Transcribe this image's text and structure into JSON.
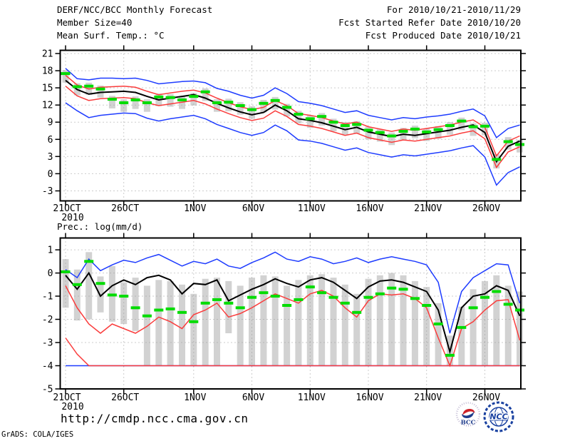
{
  "header": {
    "title": "DERF/NCC/BCC Monthly Forecast",
    "member_size": "Member Size=40",
    "for_range": "For 2010/10/21-2010/11/29",
    "refer_date": "Fcst Started Refer Date 2010/10/20",
    "produced_date": "Fcst Produced Date 2010/10/21"
  },
  "footer": {
    "url": "http://cmdp.ncc.cma.gov.cn",
    "credit": "GrADS: COLA/IGES"
  },
  "logos": {
    "bcc_label": "BCC",
    "ncc_label": "NCC"
  },
  "colors": {
    "blue": "#1e3cff",
    "red": "#fa3c3c",
    "green": "#00dc00",
    "bar_gray": "#d2d2d2",
    "grid_gray": "#9a9a9a",
    "axis_black": "#000000"
  },
  "chart_data": [
    {
      "type": "line",
      "label": "Mean Surf. Temp.: °C",
      "year_label": "2010",
      "x_tick_labels": [
        "21OCT",
        "26OCT",
        "1NOV",
        "6NOV",
        "11NOV",
        "16NOV",
        "21NOV",
        "26NOV"
      ],
      "x_tick_days": [
        0,
        5,
        11,
        16,
        21,
        26,
        31,
        36
      ],
      "n_days": 40,
      "yticks": [
        21,
        18,
        15,
        12,
        9,
        6,
        3,
        0,
        -3
      ],
      "ylim": [
        -4.75,
        21.56
      ],
      "grid": true,
      "legend": "none",
      "series": [
        {
          "name": "blue-upper-envelope",
          "color": "#1e3cff",
          "values": [
            18.4,
            16.6,
            16.4,
            16.7,
            16.7,
            16.6,
            16.7,
            16.3,
            15.7,
            15.9,
            16.1,
            16.2,
            15.9,
            14.9,
            14.4,
            13.7,
            13.2,
            13.7,
            15.0,
            14.0,
            12.6,
            12.3,
            11.9,
            11.3,
            10.7,
            11.0,
            10.2,
            9.8,
            9.4,
            9.8,
            9.6,
            9.9,
            10.1,
            10.4,
            10.9,
            11.3,
            10.1,
            6.3,
            7.9,
            8.5
          ]
        },
        {
          "name": "blue-lower-envelope",
          "color": "#1e3cff",
          "values": [
            12.4,
            11.0,
            9.8,
            10.2,
            10.4,
            10.6,
            10.5,
            9.7,
            9.2,
            9.6,
            9.9,
            10.2,
            9.6,
            8.6,
            7.9,
            7.2,
            6.7,
            7.2,
            8.5,
            7.5,
            5.9,
            5.7,
            5.3,
            4.7,
            4.1,
            4.5,
            3.7,
            3.3,
            2.9,
            3.3,
            3.1,
            3.4,
            3.7,
            4.0,
            4.5,
            4.9,
            2.9,
            -2.0,
            0.2,
            1.2
          ]
        },
        {
          "name": "red-upper-band",
          "color": "#fa3c3c",
          "values": [
            17.2,
            15.5,
            14.8,
            15.1,
            15.2,
            15.3,
            15.1,
            14.4,
            13.8,
            14.1,
            14.4,
            14.6,
            14.1,
            13.2,
            12.4,
            11.7,
            11.2,
            11.6,
            12.8,
            11.9,
            10.5,
            10.2,
            9.8,
            9.2,
            8.7,
            9.0,
            8.2,
            7.8,
            7.4,
            7.8,
            7.6,
            7.9,
            8.2,
            8.5,
            9.0,
            9.4,
            8.1,
            3.1,
            5.7,
            6.6
          ]
        },
        {
          "name": "red-lower-band",
          "color": "#fa3c3c",
          "values": [
            15.3,
            13.6,
            12.8,
            13.1,
            13.2,
            13.3,
            13.1,
            12.4,
            11.9,
            12.2,
            12.5,
            12.8,
            12.2,
            11.3,
            10.5,
            9.8,
            9.3,
            9.7,
            11.0,
            10.0,
            8.6,
            8.3,
            7.9,
            7.3,
            6.7,
            7.1,
            6.3,
            5.9,
            5.5,
            5.9,
            5.7,
            6.0,
            6.3,
            6.6,
            7.1,
            7.5,
            6.1,
            1.1,
            3.8,
            4.7
          ]
        },
        {
          "name": "black-ensemble-mean",
          "color": "#000000",
          "values": [
            16.3,
            14.7,
            13.9,
            14.2,
            14.3,
            14.4,
            14.2,
            13.5,
            12.9,
            13.2,
            13.5,
            13.8,
            13.2,
            12.3,
            11.5,
            10.8,
            10.3,
            10.7,
            12.0,
            11.0,
            9.6,
            9.3,
            8.9,
            8.3,
            7.7,
            8.1,
            7.3,
            6.9,
            6.5,
            6.9,
            6.7,
            7.0,
            7.3,
            7.6,
            8.1,
            8.5,
            7.2,
            2.1,
            4.8,
            5.7
          ]
        }
      ],
      "bars": {
        "name": "gray-spread-bar",
        "color": "#d2d2d2",
        "top": [
          18.1,
          15.8,
          15.9,
          15.4,
          13.6,
          13.0,
          13.5,
          13.0,
          14.0,
          13.9,
          13.5,
          14.1,
          14.9,
          13.0,
          13.1,
          12.5,
          11.8,
          12.9,
          13.4,
          12.2,
          11.0,
          10.2,
          10.6,
          9.6,
          9.0,
          9.2,
          8.2,
          7.8,
          7.2,
          8.0,
          8.4,
          7.9,
          8.3,
          9.0,
          9.8,
          8.8,
          8.9,
          3.4,
          6.4,
          5.9
        ],
        "bottom": [
          15.9,
          13.7,
          13.8,
          13.3,
          11.4,
          10.8,
          11.3,
          10.8,
          11.8,
          11.7,
          11.3,
          11.9,
          12.7,
          10.8,
          10.9,
          10.3,
          9.6,
          10.7,
          11.2,
          10.0,
          8.8,
          8.0,
          8.4,
          7.4,
          6.8,
          7.0,
          6.0,
          5.6,
          5.0,
          5.8,
          6.2,
          5.7,
          6.1,
          6.8,
          7.6,
          6.6,
          6.7,
          0.9,
          4.2,
          3.7
        ]
      },
      "markers": {
        "name": "green-dash-marker",
        "color": "#00dc00",
        "values": [
          17.5,
          15.2,
          15.3,
          14.8,
          13.0,
          12.4,
          12.9,
          12.4,
          13.4,
          13.3,
          12.9,
          13.5,
          14.3,
          12.4,
          12.5,
          11.9,
          11.2,
          12.3,
          12.8,
          11.6,
          10.4,
          9.6,
          10.0,
          9.0,
          8.4,
          8.6,
          7.6,
          7.2,
          6.6,
          7.4,
          7.8,
          7.3,
          7.7,
          8.4,
          9.2,
          8.2,
          8.3,
          2.5,
          5.6,
          5.1
        ]
      }
    },
    {
      "type": "line",
      "label": "Prec.: log(mm/d)",
      "year_label": "2010",
      "x_tick_labels": [
        "21OCT",
        "26OCT",
        "1NOV",
        "6NOV",
        "11NOV",
        "16NOV",
        "21NOV",
        "26NOV"
      ],
      "x_tick_days": [
        0,
        5,
        11,
        16,
        21,
        26,
        31,
        36
      ],
      "n_days": 40,
      "yticks": [
        1,
        0,
        -1,
        -2,
        -3,
        -4,
        -5
      ],
      "ylim": [
        -5,
        1.51
      ],
      "grid": true,
      "legend": "none",
      "series": [
        {
          "name": "blue-floor-line",
          "color": "#1e3cff",
          "values": [
            -4,
            -4,
            -4,
            -4,
            -4,
            -4,
            -4,
            -4,
            -4,
            -4,
            -4,
            -4,
            -4,
            -4,
            -4,
            -4,
            -4,
            -4,
            -4,
            -4,
            -4,
            -4,
            -4,
            -4,
            -4,
            -4,
            -4,
            -4,
            -4,
            -4,
            -4,
            -4,
            -4,
            -4,
            -4,
            -4,
            -4,
            -4,
            -4,
            -4
          ]
        },
        {
          "name": "red-minimum-clamped",
          "color": "#fa3c3c",
          "values": [
            -2.8,
            -3.5,
            -4,
            -4,
            -4,
            -4,
            -4,
            -4,
            -4,
            -4,
            -4,
            -4,
            -4,
            -4,
            -4,
            -4,
            -4,
            -4,
            -4,
            -4,
            -4,
            -4,
            -4,
            -4,
            -4,
            -4,
            -4,
            -4,
            -4,
            -4,
            -4,
            -4,
            -4,
            -4,
            -4,
            -4,
            -4,
            -4,
            -4,
            -4
          ]
        },
        {
          "name": "blue-upper-envelope",
          "color": "#1e3cff",
          "values": [
            0.15,
            -0.2,
            0.6,
            0.1,
            0.35,
            0.55,
            0.45,
            0.65,
            0.8,
            0.55,
            0.3,
            0.5,
            0.4,
            0.6,
            0.3,
            0.2,
            0.45,
            0.65,
            0.9,
            0.6,
            0.5,
            0.7,
            0.6,
            0.4,
            0.5,
            0.65,
            0.45,
            0.6,
            0.7,
            0.6,
            0.5,
            0.35,
            -0.4,
            -2.6,
            -0.8,
            -0.2,
            0.1,
            0.4,
            0.35,
            -1.3
          ]
        },
        {
          "name": "red-lower-band",
          "color": "#fa3c3c",
          "values": [
            -0.55,
            -1.5,
            -2.2,
            -2.6,
            -2.2,
            -2.4,
            -2.6,
            -2.3,
            -1.9,
            -2.1,
            -2.4,
            -1.8,
            -1.6,
            -1.3,
            -1.9,
            -1.75,
            -1.5,
            -1.2,
            -0.9,
            -1.1,
            -1.3,
            -0.9,
            -0.75,
            -1.0,
            -1.5,
            -1.9,
            -1.2,
            -0.9,
            -0.95,
            -0.9,
            -1.1,
            -1.5,
            -2.8,
            -4.0,
            -2.4,
            -2.1,
            -1.6,
            -1.2,
            -1.15,
            -2.9
          ]
        },
        {
          "name": "black-ensemble-mean",
          "color": "#000000",
          "values": [
            -0.1,
            -0.7,
            0.0,
            -1.0,
            -0.55,
            -0.3,
            -0.5,
            -0.2,
            -0.1,
            -0.3,
            -0.9,
            -0.45,
            -0.5,
            -0.3,
            -1.2,
            -0.95,
            -0.7,
            -0.5,
            -0.25,
            -0.45,
            -0.6,
            -0.3,
            -0.2,
            -0.4,
            -0.75,
            -1.1,
            -0.6,
            -0.35,
            -0.3,
            -0.4,
            -0.6,
            -0.8,
            -1.6,
            -3.4,
            -1.5,
            -1.0,
            -0.9,
            -0.55,
            -0.75,
            -1.85
          ]
        }
      ],
      "bars": {
        "name": "gray-spread-bar",
        "color": "#d2d2d2",
        "top": [
          0.6,
          0.15,
          0.9,
          -0.15,
          0.3,
          -0.4,
          -0.2,
          -0.55,
          -0.3,
          -0.35,
          -0.5,
          -0.9,
          -0.25,
          -0.2,
          -0.35,
          -0.55,
          -0.2,
          -0.1,
          -0.15,
          -0.55,
          -0.3,
          -0.1,
          -0.05,
          -0.2,
          -0.5,
          -0.9,
          -0.25,
          -0.1,
          0.0,
          -0.1,
          -0.35,
          -0.6,
          -1.3,
          -2.7,
          -1.45,
          -0.7,
          -0.35,
          -0.1,
          -0.55,
          -0.8
        ],
        "bottom": [
          -1.5,
          -2.05,
          -2.0,
          -1.7,
          -2.1,
          -2.2,
          -2.5,
          -4,
          -4,
          -4,
          -4,
          -4,
          -4,
          -4,
          -2.6,
          -4,
          -4,
          -4,
          -4,
          -4,
          -4,
          -4,
          -4,
          -4,
          -4,
          -4,
          -4,
          -4,
          -4,
          -4,
          -4,
          -4,
          -4,
          -4,
          -4,
          -4,
          -4,
          -4,
          -4,
          -4
        ]
      },
      "markers": {
        "name": "green-dash-marker",
        "color": "#00dc00",
        "values": [
          0.05,
          -0.5,
          0.5,
          -0.45,
          -0.95,
          -1.0,
          -1.5,
          -1.85,
          -1.6,
          -1.55,
          -1.7,
          -2.1,
          -1.3,
          -1.15,
          -1.3,
          -1.5,
          -1.05,
          -0.85,
          -1.0,
          -1.4,
          -1.15,
          -0.6,
          -0.85,
          -1.05,
          -1.3,
          -1.7,
          -1.05,
          -0.9,
          -0.65,
          -0.7,
          -1.1,
          -1.4,
          -2.2,
          -3.55,
          -2.35,
          -1.5,
          -1.05,
          -0.8,
          -1.35,
          -1.6
        ]
      }
    }
  ]
}
